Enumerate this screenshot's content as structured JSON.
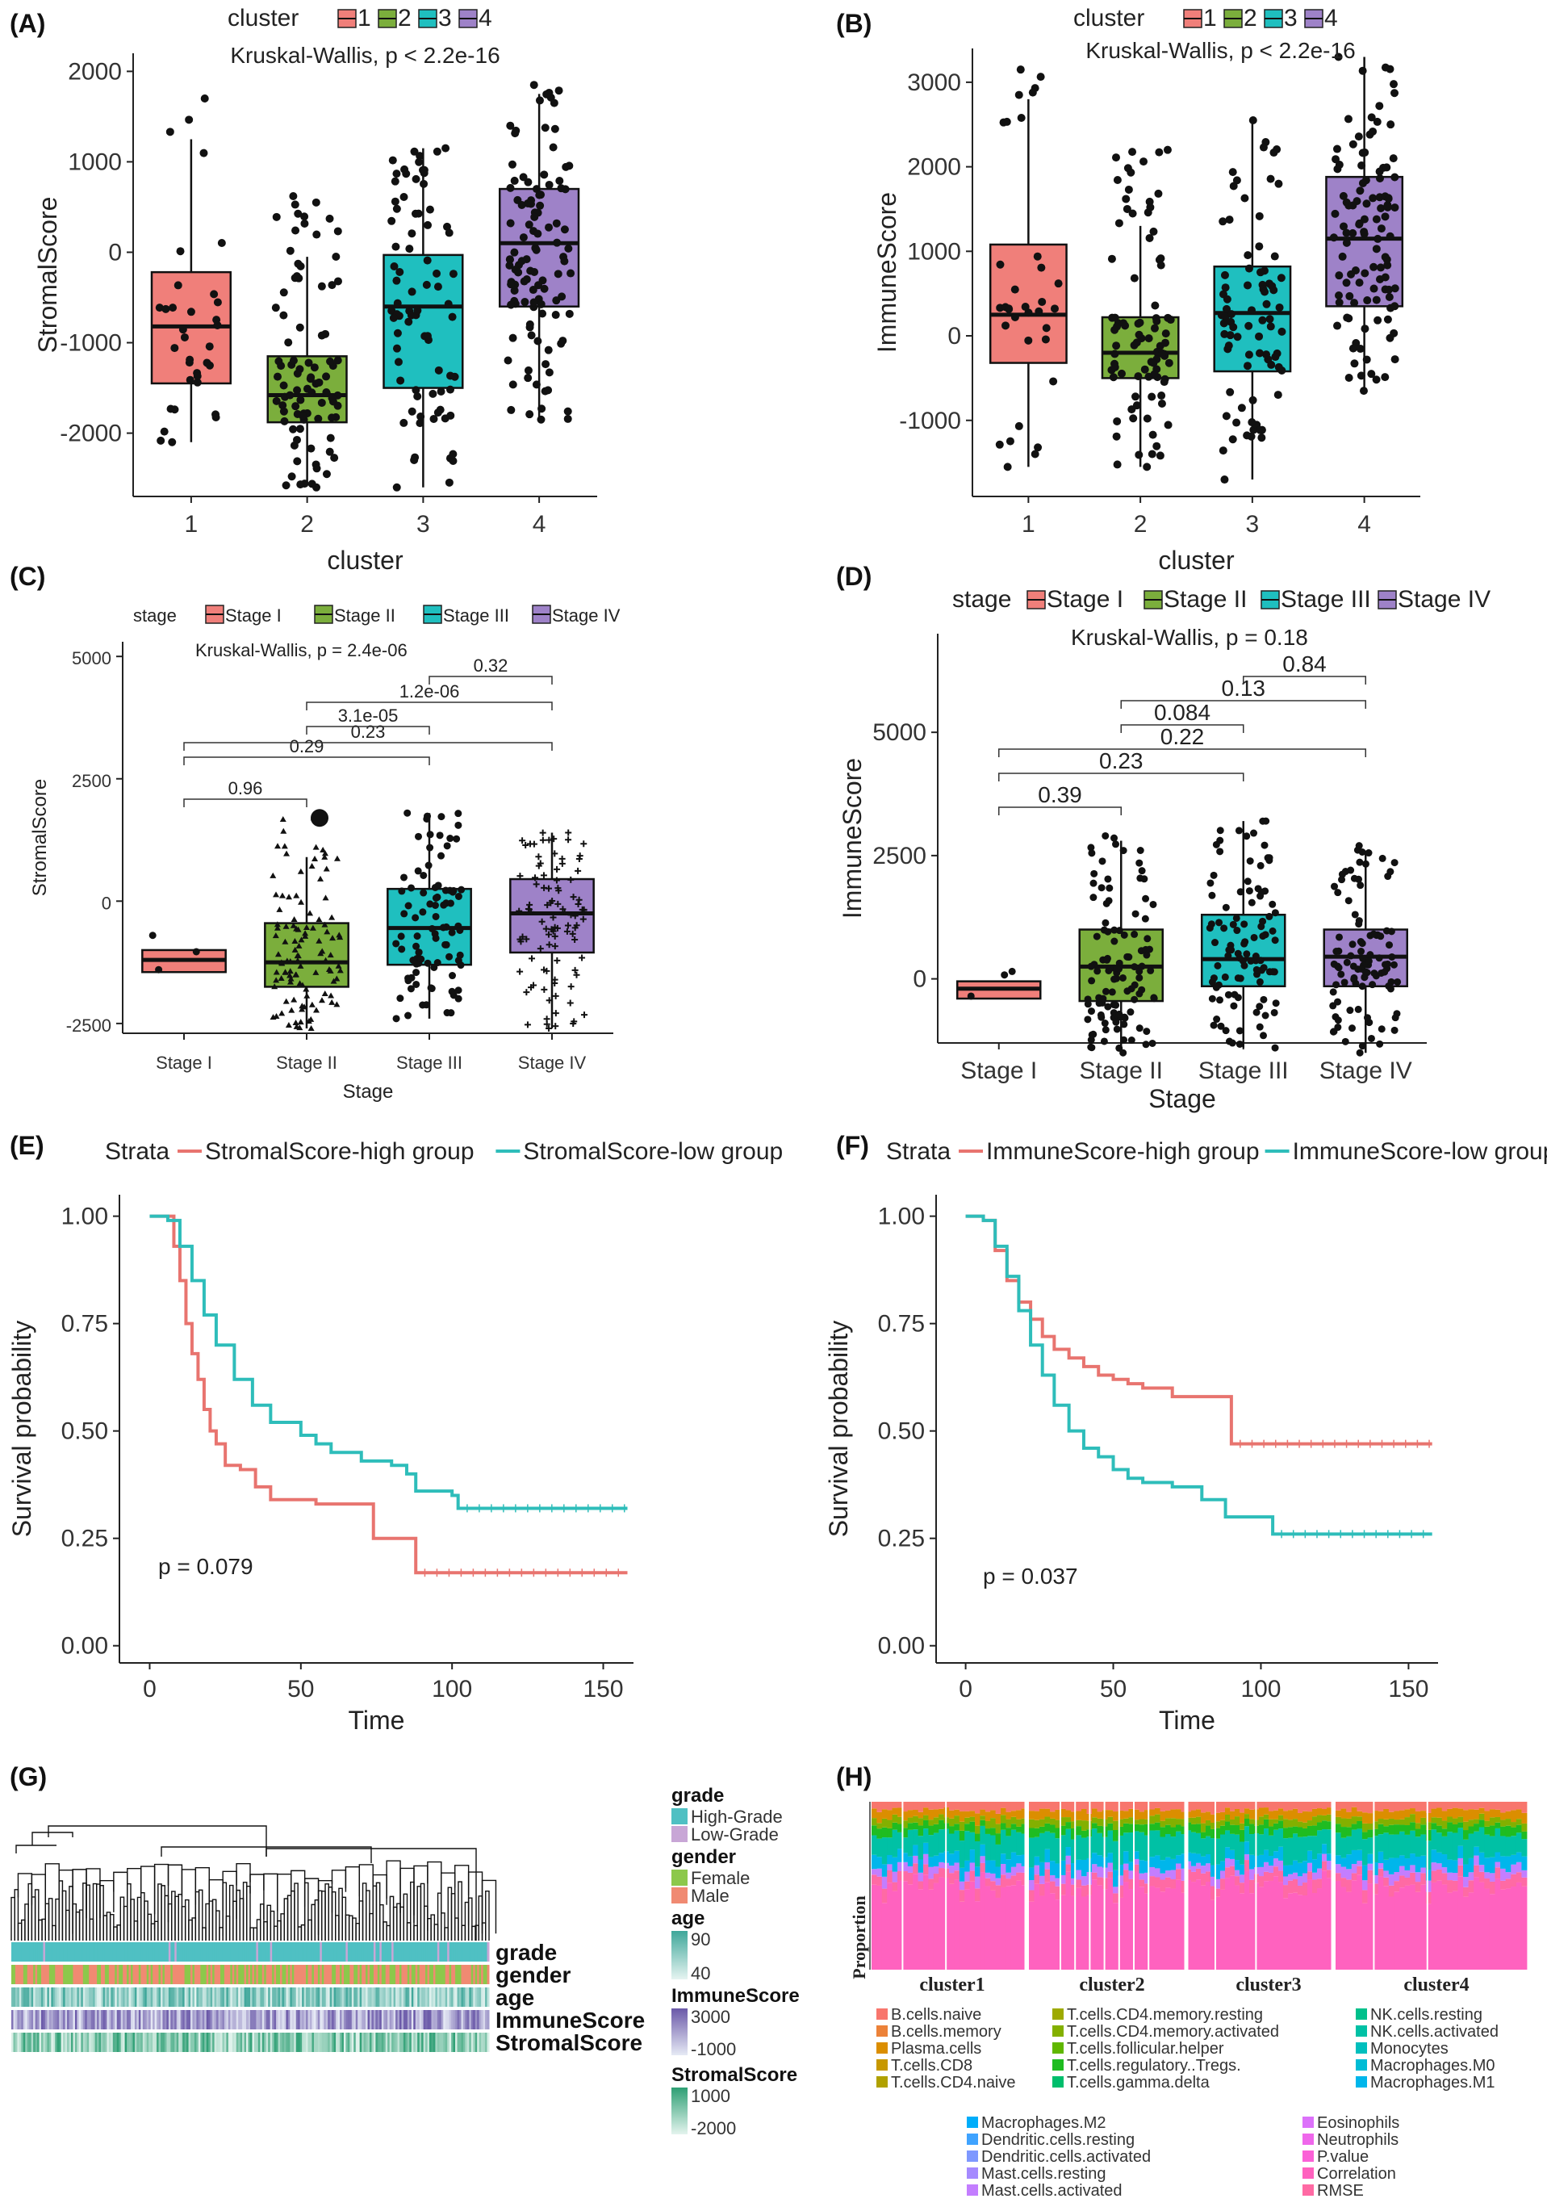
{
  "colors": {
    "c1": "#F07F7A",
    "c2": "#7BAE3C",
    "c3": "#1FBFBF",
    "c4": "#9E82C8",
    "high": "#E8746F",
    "low": "#2EBDBA",
    "grade_high": "#4FC0C3",
    "grade_low": "#C8A6D6",
    "female": "#8CC84B",
    "male": "#F08A72"
  },
  "panels": {
    "A": {
      "label": "(A)"
    },
    "B": {
      "label": "(B)"
    },
    "C": {
      "label": "(C)"
    },
    "D": {
      "label": "(D)"
    },
    "E": {
      "label": "(E)"
    },
    "F": {
      "label": "(F)"
    },
    "G": {
      "label": "(G)"
    },
    "H": {
      "label": "(H)"
    }
  },
  "chart_data": [
    {
      "id": "A",
      "type": "box",
      "legend_title": "cluster",
      "legend": [
        "1",
        "2",
        "3",
        "4"
      ],
      "annotation": "Kruskal-Wallis, p < 2.2e-16",
      "xlabel": "cluster",
      "ylabel": "StromalScore",
      "categories": [
        "1",
        "2",
        "3",
        "4"
      ],
      "ylim": [
        -2700,
        2200
      ],
      "yticks": [
        -2000,
        -1000,
        0,
        1000,
        2000
      ],
      "boxes": [
        {
          "q1": -1450,
          "median": -820,
          "q3": -220,
          "whislo": -2100,
          "whishi": 1250,
          "n": 34,
          "min": -2100,
          "max": 1700
        },
        {
          "q1": -1880,
          "median": -1580,
          "q3": -1150,
          "whislo": -2550,
          "whishi": -50,
          "n": 90,
          "min": -2600,
          "max": 620
        },
        {
          "q1": -1500,
          "median": -600,
          "q3": -30,
          "whislo": -2600,
          "whishi": 1150,
          "n": 80,
          "min": -2600,
          "max": 1150
        },
        {
          "q1": -600,
          "median": 100,
          "q3": 700,
          "whislo": -1850,
          "whishi": 1750,
          "n": 110,
          "min": -1850,
          "max": 1850
        }
      ]
    },
    {
      "id": "B",
      "type": "box",
      "legend_title": "cluster",
      "legend": [
        "1",
        "2",
        "3",
        "4"
      ],
      "annotation": "Kruskal-Wallis, p < 2.2e-16",
      "xlabel": "cluster",
      "ylabel": "ImmuneScore",
      "categories": [
        "1",
        "2",
        "3",
        "4"
      ],
      "ylim": [
        -1900,
        3400
      ],
      "yticks": [
        -1000,
        0,
        1000,
        2000,
        3000
      ],
      "boxes": [
        {
          "q1": -320,
          "median": 250,
          "q3": 1080,
          "whislo": -1550,
          "whishi": 2800,
          "n": 34,
          "min": -1550,
          "max": 3150
        },
        {
          "q1": -500,
          "median": -200,
          "q3": 220,
          "whislo": -1550,
          "whishi": 1300,
          "n": 90,
          "min": -1550,
          "max": 2200
        },
        {
          "q1": -420,
          "median": 270,
          "q3": 820,
          "whislo": -1700,
          "whishi": 2550,
          "n": 80,
          "min": -1700,
          "max": 2550
        },
        {
          "q1": 350,
          "median": 1150,
          "q3": 1880,
          "whislo": -650,
          "whishi": 3300,
          "n": 110,
          "min": -650,
          "max": 3300
        }
      ]
    },
    {
      "id": "C",
      "type": "box",
      "legend_title": "stage",
      "legend": [
        "Stage I",
        "Stage II",
        "Stage III",
        "Stage IV"
      ],
      "annotation": "Kruskal-Wallis, p = 2.4e-06",
      "xlabel": "Stage",
      "ylabel": "StromalScore",
      "categories": [
        "Stage I",
        "Stage II",
        "Stage III",
        "Stage IV"
      ],
      "ylim": [
        -2700,
        5300
      ],
      "yticks": [
        -2500,
        0,
        2500,
        5000
      ],
      "boxes": [
        {
          "q1": -1450,
          "median": -1200,
          "q3": -1000,
          "whislo": -1450,
          "whishi": -1000,
          "n": 3,
          "min": -1400,
          "max": -700
        },
        {
          "q1": -1750,
          "median": -1250,
          "q3": -450,
          "whislo": -2600,
          "whishi": 900,
          "n": 110,
          "min": -2600,
          "max": 1700
        },
        {
          "q1": -1300,
          "median": -550,
          "q3": 250,
          "whislo": -2400,
          "whishi": 1800,
          "n": 90,
          "min": -2400,
          "max": 1800
        },
        {
          "q1": -1050,
          "median": -250,
          "q3": 450,
          "whislo": -2600,
          "whishi": 1400,
          "n": 100,
          "min": -2600,
          "max": 1400
        }
      ],
      "comparisons": [
        {
          "a": 0,
          "b": 1,
          "label": "0.96"
        },
        {
          "a": 0,
          "b": 2,
          "label": "0.29"
        },
        {
          "a": 0,
          "b": 3,
          "label": "0.23"
        },
        {
          "a": 1,
          "b": 2,
          "label": "3.1e-05"
        },
        {
          "a": 1,
          "b": 3,
          "label": "1.2e-06"
        },
        {
          "a": 2,
          "b": 3,
          "label": "0.32"
        }
      ]
    },
    {
      "id": "D",
      "type": "box",
      "legend_title": "stage",
      "legend": [
        "Stage I",
        "Stage II",
        "Stage III",
        "Stage IV"
      ],
      "annotation": "Kruskal-Wallis, p = 0.18",
      "xlabel": "Stage",
      "ylabel": "ImmuneScore",
      "categories": [
        "Stage I",
        "Stage II",
        "Stage III",
        "Stage IV"
      ],
      "ylim": [
        -1300,
        7000
      ],
      "yticks": [
        0,
        2500,
        5000
      ],
      "boxes": [
        {
          "q1": -400,
          "median": -200,
          "q3": -50,
          "whislo": -400,
          "whishi": -50,
          "n": 3,
          "min": -350,
          "max": 150
        },
        {
          "q1": -450,
          "median": 250,
          "q3": 1000,
          "whislo": -1500,
          "whishi": 2800,
          "n": 110,
          "min": -1500,
          "max": 2900
        },
        {
          "q1": -150,
          "median": 400,
          "q3": 1300,
          "whislo": -1400,
          "whishi": 3200,
          "n": 100,
          "min": -1400,
          "max": 3200
        },
        {
          "q1": -150,
          "median": 450,
          "q3": 1000,
          "whislo": -1500,
          "whishi": 2600,
          "n": 100,
          "min": -1500,
          "max": 2700
        }
      ],
      "comparisons": [
        {
          "a": 0,
          "b": 1,
          "label": "0.39"
        },
        {
          "a": 0,
          "b": 2,
          "label": "0.23"
        },
        {
          "a": 0,
          "b": 3,
          "label": "0.22"
        },
        {
          "a": 1,
          "b": 2,
          "label": "0.084"
        },
        {
          "a": 1,
          "b": 3,
          "label": "0.13"
        },
        {
          "a": 2,
          "b": 3,
          "label": "0.84"
        }
      ]
    },
    {
      "id": "E",
      "type": "line",
      "legend_title": "Strata",
      "xlabel": "Time",
      "ylabel": "Survival probability",
      "xlim": [
        -10,
        160
      ],
      "ylim": [
        -0.04,
        1.05
      ],
      "xticks": [
        0,
        50,
        100,
        150
      ],
      "yticks": [
        0.0,
        0.25,
        0.5,
        0.75,
        1.0
      ],
      "ytick_labels": [
        "0.00",
        "0.25",
        "0.50",
        "0.75",
        "1.00"
      ],
      "annotation": "p = 0.079",
      "series": [
        {
          "name": "StromalScore-high group",
          "color_key": "high",
          "points": [
            [
              0,
              1.0
            ],
            [
              5,
              1.0
            ],
            [
              8,
              0.93
            ],
            [
              10,
              0.85
            ],
            [
              12,
              0.75
            ],
            [
              14,
              0.68
            ],
            [
              16,
              0.62
            ],
            [
              18,
              0.55
            ],
            [
              20,
              0.5
            ],
            [
              22,
              0.47
            ],
            [
              25,
              0.42
            ],
            [
              30,
              0.41
            ],
            [
              35,
              0.37
            ],
            [
              40,
              0.34
            ],
            [
              55,
              0.33
            ],
            [
              74,
              0.33
            ],
            [
              74,
              0.25
            ],
            [
              88,
              0.25
            ],
            [
              88,
              0.17
            ],
            [
              158,
              0.17
            ]
          ]
        },
        {
          "name": "StromalScore-low group",
          "color_key": "low",
          "points": [
            [
              0,
              1.0
            ],
            [
              6,
              0.99
            ],
            [
              10,
              0.93
            ],
            [
              14,
              0.85
            ],
            [
              18,
              0.77
            ],
            [
              22,
              0.7
            ],
            [
              28,
              0.62
            ],
            [
              34,
              0.56
            ],
            [
              40,
              0.52
            ],
            [
              50,
              0.49
            ],
            [
              55,
              0.47
            ],
            [
              60,
              0.45
            ],
            [
              70,
              0.43
            ],
            [
              80,
              0.42
            ],
            [
              85,
              0.4
            ],
            [
              88,
              0.36
            ],
            [
              100,
              0.35
            ],
            [
              102,
              0.32
            ],
            [
              158,
              0.32
            ]
          ]
        }
      ]
    },
    {
      "id": "F",
      "type": "line",
      "legend_title": "Strata",
      "xlabel": "Time",
      "ylabel": "Survival probability",
      "xlim": [
        -10,
        160
      ],
      "ylim": [
        -0.04,
        1.05
      ],
      "xticks": [
        0,
        50,
        100,
        150
      ],
      "yticks": [
        0.0,
        0.25,
        0.5,
        0.75,
        1.0
      ],
      "ytick_labels": [
        "0.00",
        "0.25",
        "0.50",
        "0.75",
        "1.00"
      ],
      "annotation": "p = 0.037",
      "series": [
        {
          "name": "ImmuneScore-high group",
          "color_key": "high",
          "points": [
            [
              0,
              1.0
            ],
            [
              6,
              0.99
            ],
            [
              10,
              0.92
            ],
            [
              14,
              0.85
            ],
            [
              18,
              0.8
            ],
            [
              22,
              0.76
            ],
            [
              26,
              0.72
            ],
            [
              30,
              0.69
            ],
            [
              35,
              0.67
            ],
            [
              40,
              0.65
            ],
            [
              45,
              0.63
            ],
            [
              50,
              0.62
            ],
            [
              55,
              0.61
            ],
            [
              60,
              0.6
            ],
            [
              70,
              0.58
            ],
            [
              80,
              0.58
            ],
            [
              90,
              0.58
            ],
            [
              90,
              0.47
            ],
            [
              158,
              0.47
            ]
          ]
        },
        {
          "name": "ImmuneScore-low group",
          "color_key": "low",
          "points": [
            [
              0,
              1.0
            ],
            [
              6,
              0.99
            ],
            [
              10,
              0.93
            ],
            [
              14,
              0.86
            ],
            [
              18,
              0.78
            ],
            [
              22,
              0.7
            ],
            [
              26,
              0.63
            ],
            [
              30,
              0.56
            ],
            [
              35,
              0.5
            ],
            [
              40,
              0.46
            ],
            [
              45,
              0.44
            ],
            [
              50,
              0.41
            ],
            [
              55,
              0.39
            ],
            [
              60,
              0.38
            ],
            [
              70,
              0.37
            ],
            [
              80,
              0.34
            ],
            [
              88,
              0.3
            ],
            [
              95,
              0.3
            ],
            [
              104,
              0.26
            ],
            [
              158,
              0.26
            ]
          ]
        }
      ]
    }
  ],
  "panelG": {
    "row_labels": [
      "grade",
      "gender",
      "age",
      "ImmuneScore",
      "StromalScore"
    ],
    "legend": {
      "grade_title": "grade",
      "grade_items": [
        "High-Grade",
        "Low-Grade"
      ],
      "gender_title": "gender",
      "gender_items": [
        "Female",
        "Male"
      ],
      "age_title": "age",
      "age_ticks": [
        "90",
        "40"
      ],
      "immune_title": "ImmuneScore",
      "immune_ticks": [
        "3000",
        "-1000"
      ],
      "stromal_title": "StromalScore",
      "stromal_ticks": [
        "1000",
        "-2000"
      ]
    }
  },
  "panelH": {
    "ylabel": "Proportion",
    "clusters": [
      "cluster1",
      "cluster2",
      "cluster3",
      "cluster4"
    ],
    "legend_columns": [
      [
        "B.cells.naive",
        "B.cells.memory",
        "Plasma.cells",
        "T.cells.CD8",
        "T.cells.CD4.naive"
      ],
      [
        "T.cells.CD4.memory.resting",
        "T.cells.CD4.memory.activated",
        "T.cells.follicular.helper",
        "T.cells.regulatory..Tregs.",
        "T.cells.gamma.delta"
      ],
      [
        "NK.cells.resting",
        "NK.cells.activated",
        "Monocytes",
        "Macrophages.M0",
        "Macrophages.M1"
      ],
      [
        "Macrophages.M2",
        "Dendritic.cells.resting",
        "Dendritic.cells.activated",
        "Mast.cells.resting",
        "Mast.cells.activated"
      ],
      [
        "Eosinophils",
        "Neutrophils",
        "P.value",
        "Correlation",
        "RMSE"
      ]
    ],
    "legend_colors": [
      [
        "#F8766D",
        "#EC8239",
        "#DB8E00",
        "#C79800",
        "#B0A100"
      ],
      [
        "#9EAA00",
        "#83B000",
        "#60B700",
        "#1FBC21",
        "#00BE6C"
      ],
      [
        "#00C08B",
        "#00C1A5",
        "#00BFBD",
        "#00BCD5",
        "#00B6EB"
      ],
      [
        "#00ADFA",
        "#3FA3FF",
        "#7E98FF",
        "#A58AFF",
        "#C37EFF"
      ],
      [
        "#DC71FA",
        "#EF67EB",
        "#FB61D7",
        "#FF62BF",
        "#FF6AA4"
      ]
    ]
  }
}
